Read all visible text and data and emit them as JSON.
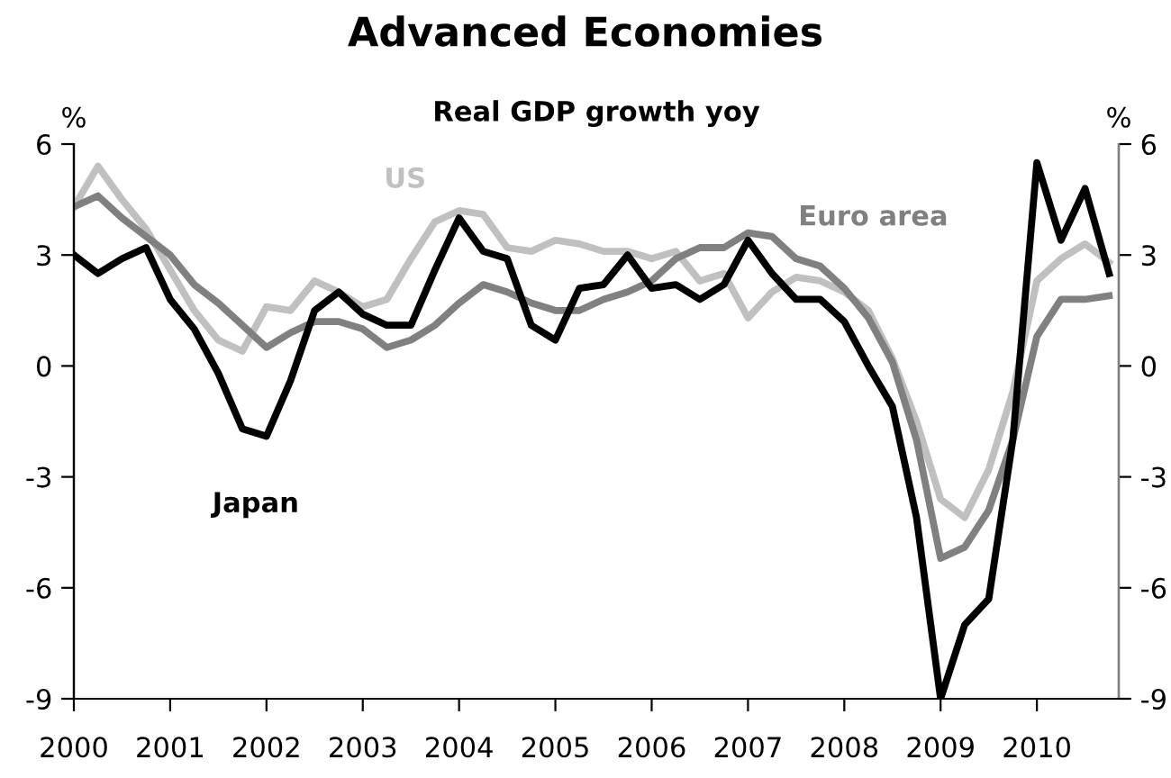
{
  "chart_data": {
    "type": "line",
    "title": "Advanced Economies",
    "subtitle": "Real GDP growth yoy",
    "ylabel": "%",
    "y2label": "%",
    "x": [
      2000.0,
      2000.25,
      2000.5,
      2000.75,
      2001.0,
      2001.25,
      2001.5,
      2001.75,
      2002.0,
      2002.25,
      2002.5,
      2002.75,
      2003.0,
      2003.25,
      2003.5,
      2003.75,
      2004.0,
      2004.25,
      2004.5,
      2004.75,
      2005.0,
      2005.25,
      2005.5,
      2005.75,
      2006.0,
      2006.25,
      2006.5,
      2006.75,
      2007.0,
      2007.25,
      2007.5,
      2007.75,
      2008.0,
      2008.25,
      2008.5,
      2008.75,
      2009.0,
      2009.25,
      2009.5,
      2009.75,
      2010.0,
      2010.25,
      2010.5,
      2010.75
    ],
    "series": [
      {
        "name": "US",
        "color": "#c0c0c0",
        "values": [
          4.3,
          5.4,
          4.5,
          3.7,
          2.6,
          1.5,
          0.7,
          0.4,
          1.6,
          1.5,
          2.3,
          2.0,
          1.6,
          1.8,
          2.9,
          3.9,
          4.2,
          4.1,
          3.2,
          3.1,
          3.4,
          3.3,
          3.1,
          3.1,
          2.9,
          3.1,
          2.3,
          2.5,
          1.3,
          2.0,
          2.4,
          2.3,
          2.0,
          1.5,
          0.2,
          -1.5,
          -3.6,
          -4.1,
          -2.8,
          -0.7,
          2.3,
          2.9,
          3.3,
          2.8
        ]
      },
      {
        "name": "Euro area",
        "color": "#808080",
        "values": [
          4.3,
          4.6,
          4.0,
          3.5,
          3.0,
          2.2,
          1.7,
          1.1,
          0.5,
          0.9,
          1.2,
          1.2,
          1.0,
          0.5,
          0.7,
          1.1,
          1.7,
          2.2,
          2.0,
          1.7,
          1.5,
          1.5,
          1.8,
          2.0,
          2.3,
          2.9,
          3.2,
          3.2,
          3.6,
          3.5,
          2.9,
          2.7,
          2.1,
          1.3,
          0.1,
          -2.0,
          -5.2,
          -4.9,
          -3.9,
          -2.0,
          0.8,
          1.8,
          1.8,
          1.9
        ]
      },
      {
        "name": "Japan",
        "color": "#000000",
        "values": [
          3.0,
          2.5,
          2.9,
          3.2,
          1.8,
          1.0,
          -0.2,
          -1.7,
          -1.9,
          -0.4,
          1.5,
          2.0,
          1.4,
          1.1,
          1.1,
          2.6,
          4.0,
          3.1,
          2.9,
          1.1,
          0.7,
          2.1,
          2.2,
          3.0,
          2.1,
          2.2,
          1.8,
          2.2,
          3.4,
          2.5,
          1.8,
          1.8,
          1.2,
          0.0,
          -1.1,
          -4.1,
          -9.0,
          -7.0,
          -6.3,
          -2.0,
          5.5,
          3.4,
          4.8,
          2.5
        ]
      }
    ],
    "xlim": [
      2000,
      2010.85
    ],
    "xticks": [
      2000,
      2001,
      2002,
      2003,
      2004,
      2005,
      2006,
      2007,
      2008,
      2009,
      2010
    ],
    "ylim": [
      -9,
      6
    ],
    "yticks": [
      -9,
      -6,
      -3,
      0,
      3,
      6
    ],
    "y2lim": [
      -9,
      6
    ],
    "y2ticks": [
      -9,
      -6,
      -3,
      0,
      3,
      6
    ],
    "grid": false,
    "legend": false,
    "marker": "none",
    "line_style": "solid"
  }
}
